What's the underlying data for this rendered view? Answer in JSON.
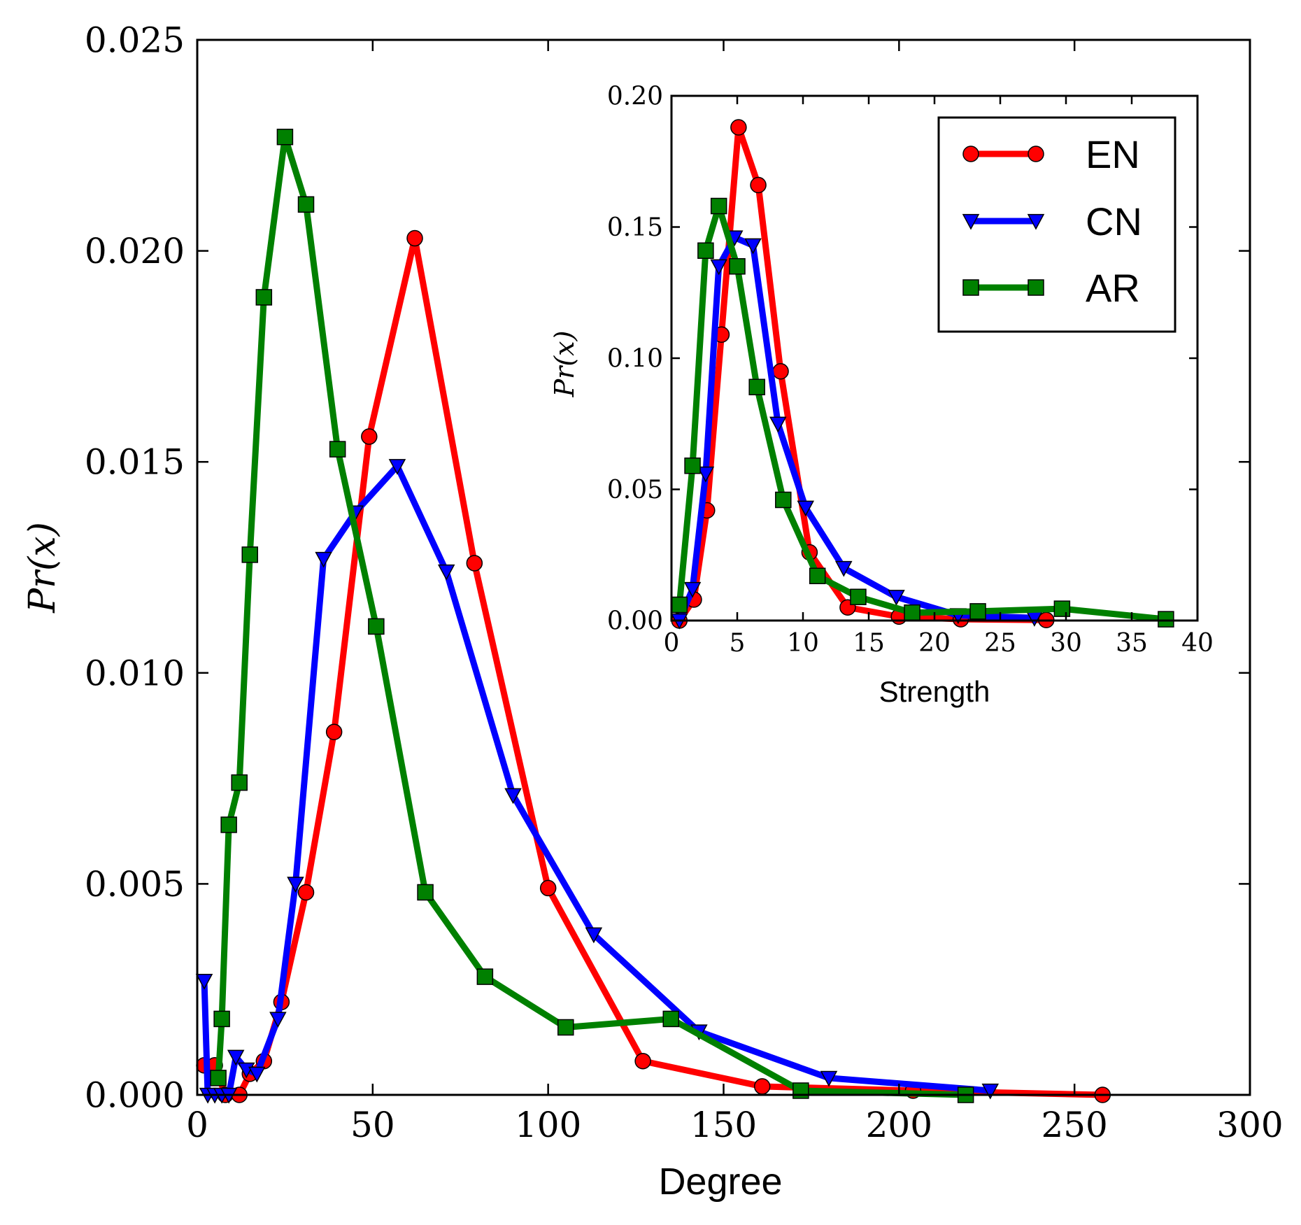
{
  "chart_data": [
    {
      "type": "line",
      "title": "",
      "xlabel": "Degree",
      "ylabel": "Pr(x)",
      "xlim": [
        0,
        300
      ],
      "ylim": [
        0,
        0.025
      ],
      "x_ticks": [
        "0",
        "50",
        "100",
        "150",
        "200",
        "250",
        "300"
      ],
      "y_ticks": [
        "0.000",
        "0.005",
        "0.010",
        "0.015",
        "0.020",
        "0.025"
      ],
      "series": [
        {
          "name": "EN",
          "color": "#ff0000",
          "marker": "circle",
          "x": [
            2,
            5,
            8,
            12,
            15,
            19,
            24,
            31,
            39,
            49,
            62,
            79,
            100,
            127,
            161,
            204,
            258
          ],
          "y": [
            0.0007,
            0.0007,
            0.0,
            0.0,
            0.0005,
            0.0008,
            0.0022,
            0.0048,
            0.0086,
            0.0156,
            0.0203,
            0.0126,
            0.0049,
            0.0008,
            0.0002,
            0.0001,
            0.0
          ]
        },
        {
          "name": "CN",
          "color": "#0000ff",
          "marker": "triangle-down",
          "x": [
            2,
            3,
            5,
            7,
            9,
            11,
            14,
            17,
            23,
            28,
            36,
            45,
            57,
            71,
            90,
            113,
            143,
            180,
            226
          ],
          "y": [
            0.0027,
            0.0,
            0.0,
            0.0,
            0.0,
            0.0009,
            0.0006,
            0.0005,
            0.0018,
            0.005,
            0.0127,
            0.0138,
            0.0149,
            0.0124,
            0.0071,
            0.0038,
            0.0015,
            0.0004,
            0.0001
          ]
        },
        {
          "name": "AR",
          "color": "#008000",
          "marker": "square",
          "x": [
            6,
            7,
            9,
            12,
            15,
            19,
            25,
            31,
            40,
            51,
            65,
            82,
            105,
            135,
            172,
            219
          ],
          "y": [
            0.0004,
            0.0018,
            0.0064,
            0.0074,
            0.0128,
            0.0189,
            0.0227,
            0.0211,
            0.0153,
            0.0111,
            0.0048,
            0.0028,
            0.0016,
            0.0018,
            0.0001,
            0.0
          ]
        }
      ]
    },
    {
      "type": "line",
      "title": "",
      "xlabel": "Strength",
      "ylabel": "Pr(x)",
      "xlim": [
        0,
        40
      ],
      "ylim": [
        0,
        0.2
      ],
      "x_ticks": [
        "0",
        "5",
        "10",
        "15",
        "20",
        "25",
        "30",
        "35",
        "40"
      ],
      "y_ticks": [
        "0.00",
        "0.05",
        "0.10",
        "0.15",
        "0.20"
      ],
      "legend": {
        "position": "top-right",
        "entries": [
          "EN",
          "CN",
          "AR"
        ]
      },
      "series": [
        {
          "name": "EN",
          "color": "#ff0000",
          "marker": "circle",
          "x": [
            0.6,
            1.7,
            2.7,
            3.8,
            5.1,
            6.6,
            8.3,
            10.5,
            13.4,
            17.3,
            22,
            28.5
          ],
          "y": [
            0.0,
            0.008,
            0.042,
            0.109,
            0.188,
            0.166,
            0.095,
            0.026,
            0.005,
            0.0015,
            0.0005,
            0.0002
          ]
        },
        {
          "name": "CN",
          "color": "#0000ff",
          "marker": "triangle-down",
          "x": [
            0.6,
            1.6,
            2.6,
            3.6,
            4.8,
            6.2,
            8.1,
            10.2,
            13.1,
            17.1,
            21.8,
            27.6
          ],
          "y": [
            0.0,
            0.012,
            0.056,
            0.135,
            0.146,
            0.143,
            0.075,
            0.043,
            0.02,
            0.009,
            0.002,
            0.001
          ]
        },
        {
          "name": "AR",
          "color": "#008000",
          "marker": "square",
          "x": [
            0.6,
            1.6,
            2.6,
            3.6,
            5.0,
            6.5,
            8.5,
            11.1,
            14.2,
            18.3,
            23.3,
            29.7,
            37.6
          ],
          "y": [
            0.006,
            0.059,
            0.141,
            0.158,
            0.135,
            0.089,
            0.046,
            0.017,
            0.009,
            0.003,
            0.0035,
            0.0045,
            0.0005
          ]
        }
      ]
    }
  ]
}
